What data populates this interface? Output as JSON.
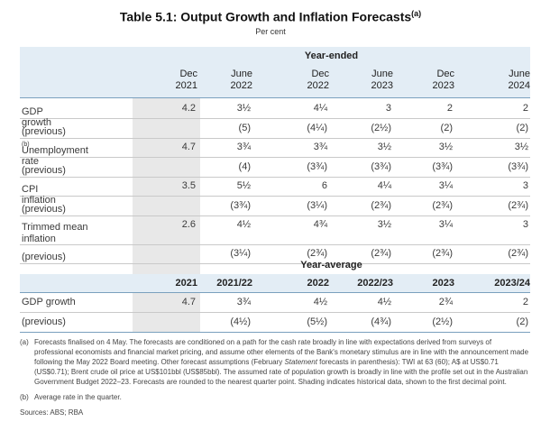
{
  "title": "Table 5.1: Output Growth and Inflation Forecasts",
  "title_note": "(a)",
  "subtitle": "Per cent",
  "year_ended": {
    "group_label": "Year-ended",
    "columns": [
      [
        "Dec",
        "2021"
      ],
      [
        "June",
        "2022"
      ],
      [
        "Dec",
        "2022"
      ],
      [
        "June",
        "2023"
      ],
      [
        "Dec",
        "2023"
      ],
      [
        "June",
        "2024"
      ]
    ],
    "rows": [
      {
        "label": "GDP growth",
        "note": "",
        "values": [
          "4.2",
          "3½",
          "4¼",
          "3",
          "2",
          "2"
        ]
      },
      {
        "label": "(previous)",
        "note": "",
        "values": [
          "",
          "(5)",
          "(4¼)",
          "(2½)",
          "(2)",
          "(2)"
        ]
      },
      {
        "label": "Unemployment rate",
        "note": "(b)",
        "values": [
          "4.7",
          "3¾",
          "3¾",
          "3½",
          "3½",
          "3½"
        ]
      },
      {
        "label": "(previous)",
        "note": "",
        "values": [
          "",
          "(4)",
          "(3¾)",
          "(3¾)",
          "(3¾)",
          "(3¾)"
        ]
      },
      {
        "label": "CPI inflation",
        "note": "",
        "values": [
          "3.5",
          "5½",
          "6",
          "4¼",
          "3¼",
          "3"
        ]
      },
      {
        "label": "(previous)",
        "note": "",
        "values": [
          "",
          "(3¾)",
          "(3¼)",
          "(2¾)",
          "(2¾)",
          "(2¾)"
        ]
      },
      {
        "label": "Trimmed mean inflation",
        "note": "",
        "values": [
          "2.6",
          "4½",
          "4¾",
          "3½",
          "3¼",
          "3"
        ]
      },
      {
        "label": "(previous)",
        "note": "",
        "values": [
          "",
          "(3¼)",
          "(2¾)",
          "(2¾)",
          "(2¾)",
          "(2¾)"
        ]
      }
    ]
  },
  "year_average": {
    "group_label": "Year-average",
    "columns": [
      "2021",
      "2021/22",
      "2022",
      "2022/23",
      "2023",
      "2023/24"
    ],
    "rows": [
      {
        "label": "GDP growth",
        "values": [
          "4.7",
          "3¾",
          "4½",
          "4½",
          "2¾",
          "2"
        ]
      },
      {
        "label": "(previous)",
        "values": [
          "",
          "(4½)",
          "(5½)",
          "(4¾)",
          "(2½)",
          "(2)"
        ]
      }
    ]
  },
  "footnotes": [
    {
      "key": "(a)",
      "text_before": "Forecasts finalised on 4 May. The forecasts are conditioned on a path for the cash rate broadly in line with expectations derived from surveys of professional economists and financial market pricing, and assume other elements of the Bank's monetary stimulus are in line with the announcement made following the May 2022 Board meeting. Other forecast assumptions (February ",
      "italic": "Statement",
      "text_after": " forecasts in parenthesis): TWI at 63 (60); A$ at US$0.71 (US$0.71); Brent crude oil price at US$101bbl (US$85bbl). The assumed rate of population growth is broadly in line with the profile set out in the Australian Government Budget 2022–23. Forecasts are rounded to the nearest quarter point. Shading indicates historical data, shown to the first decimal point."
    },
    {
      "key": "(b)",
      "text_before": "Average rate in the quarter.",
      "italic": "",
      "text_after": ""
    }
  ],
  "sources": "Sources: ABS; RBA",
  "colors": {
    "header_band": "#e3edf5",
    "shade": "#e8e8e8"
  }
}
